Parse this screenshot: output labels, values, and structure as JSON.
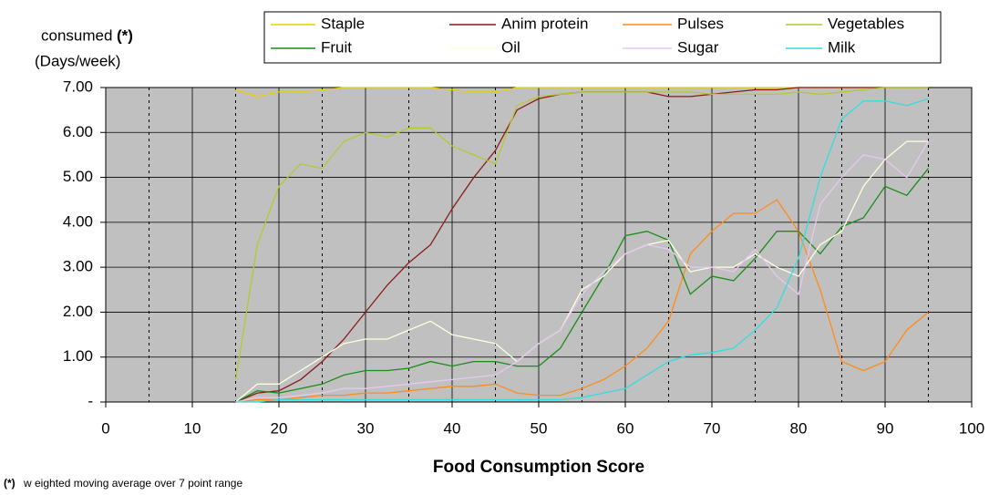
{
  "chart_data": {
    "type": "line",
    "y_label": "consumed",
    "y_label_note": "(*)",
    "y_label_unit": "(Days/week)",
    "x_label": "Food Consumption Score",
    "footnote_mark": "(*)",
    "footnote": "w eighted moving average over 7 point range",
    "x": [
      15,
      17.5,
      20,
      22.5,
      25,
      27.5,
      30,
      32.5,
      35,
      37.5,
      40,
      42.5,
      45,
      47.5,
      50,
      52.5,
      55,
      57.5,
      60,
      62.5,
      65,
      67.5,
      70,
      72.5,
      75,
      77.5,
      80,
      82.5,
      85,
      87.5,
      90,
      92.5,
      95
    ],
    "series": [
      {
        "name": "Staple",
        "color": "#e6d000",
        "values": [
          6.95,
          6.8,
          6.9,
          6.9,
          6.95,
          7,
          7,
          7,
          7,
          7,
          6.95,
          6.9,
          6.9,
          7,
          7,
          7,
          7,
          7,
          7,
          7,
          7,
          7,
          7,
          7,
          7,
          7,
          7,
          7,
          7,
          7,
          7,
          7,
          7
        ]
      },
      {
        "name": "Anim protein",
        "color": "#8b1a1a",
        "values": [
          0,
          0.2,
          0.25,
          0.5,
          0.9,
          1.4,
          2.0,
          2.6,
          3.1,
          3.5,
          4.3,
          5.0,
          5.6,
          6.5,
          6.75,
          6.85,
          6.9,
          6.9,
          6.9,
          6.9,
          6.8,
          6.8,
          6.85,
          6.9,
          6.95,
          6.95,
          7,
          7,
          7,
          7,
          7,
          7,
          7
        ]
      },
      {
        "name": "Pulses",
        "color": "#ff8c1a",
        "values": [
          0,
          0.05,
          0.05,
          0.1,
          0.15,
          0.15,
          0.2,
          0.2,
          0.25,
          0.3,
          0.35,
          0.35,
          0.4,
          0.2,
          0.15,
          0.15,
          0.3,
          0.5,
          0.8,
          1.2,
          1.8,
          3.3,
          3.8,
          4.2,
          4.2,
          4.5,
          3.8,
          2.5,
          0.9,
          0.7,
          0.9,
          1.6,
          2.0
        ]
      },
      {
        "name": "Vegetables",
        "color": "#b4c832",
        "values": [
          0.5,
          3.5,
          4.8,
          5.3,
          5.2,
          5.8,
          6.0,
          5.9,
          6.1,
          6.1,
          5.7,
          5.5,
          5.3,
          6.6,
          6.8,
          6.85,
          6.9,
          6.9,
          6.9,
          6.9,
          6.9,
          6.9,
          6.85,
          6.85,
          6.85,
          6.85,
          6.9,
          6.85,
          6.9,
          6.95,
          7,
          7,
          7
        ]
      },
      {
        "name": "Fruit",
        "color": "#1a8c1a",
        "values": [
          0,
          0.25,
          0.2,
          0.3,
          0.4,
          0.6,
          0.7,
          0.7,
          0.75,
          0.9,
          0.8,
          0.9,
          0.9,
          0.8,
          0.8,
          1.2,
          2.0,
          2.8,
          3.7,
          3.8,
          3.6,
          2.4,
          2.8,
          2.7,
          3.2,
          3.8,
          3.8,
          3.3,
          3.9,
          4.1,
          4.8,
          4.6,
          5.2
        ]
      },
      {
        "name": "Oil",
        "color": "#ffffe0",
        "values": [
          0,
          0.4,
          0.4,
          0.7,
          1.0,
          1.3,
          1.4,
          1.4,
          1.6,
          1.8,
          1.5,
          1.4,
          1.3,
          0.9,
          1.3,
          1.6,
          2.5,
          2.8,
          3.3,
          3.5,
          3.6,
          2.9,
          3.0,
          3.0,
          3.3,
          3.0,
          2.8,
          3.5,
          3.8,
          4.8,
          5.4,
          5.8,
          5.8
        ]
      },
      {
        "name": "Sugar",
        "color": "#e6c8f0",
        "values": [
          0,
          0.1,
          0.1,
          0.15,
          0.2,
          0.3,
          0.3,
          0.35,
          0.4,
          0.45,
          0.5,
          0.55,
          0.6,
          0.9,
          1.3,
          1.6,
          2.4,
          2.9,
          3.3,
          3.5,
          3.4,
          3.0,
          3.0,
          2.9,
          3.4,
          2.8,
          2.4,
          4.4,
          5.0,
          5.5,
          5.4,
          5.0,
          5.8
        ]
      },
      {
        "name": "Milk",
        "color": "#33dddd",
        "values": [
          0,
          0,
          0.05,
          0.05,
          0.05,
          0.05,
          0.05,
          0.05,
          0.05,
          0.05,
          0.05,
          0.05,
          0.05,
          0.05,
          0.05,
          0.05,
          0.1,
          0.2,
          0.3,
          0.6,
          0.9,
          1.05,
          1.1,
          1.2,
          1.6,
          2.1,
          3.2,
          5.0,
          6.3,
          6.7,
          6.7,
          6.6,
          6.75
        ]
      }
    ],
    "xlim": [
      0,
      100
    ],
    "xticks": [
      0,
      10,
      20,
      30,
      40,
      50,
      60,
      70,
      80,
      90,
      100
    ],
    "xminor_ticks": [
      5,
      15,
      25,
      35,
      45,
      55,
      65,
      75,
      85,
      95
    ],
    "ylim": [
      0,
      7
    ],
    "yticks": [
      {
        "value": 0,
        "label": "-"
      },
      {
        "value": 1,
        "label": "1.00"
      },
      {
        "value": 2,
        "label": "2.00"
      },
      {
        "value": 3,
        "label": "3.00"
      },
      {
        "value": 4,
        "label": "4.00"
      },
      {
        "value": 5,
        "label": "5.00"
      },
      {
        "value": 6,
        "label": "6.00"
      },
      {
        "value": 7,
        "label": "7.00"
      }
    ],
    "grid": true,
    "plot_background": "#c0c0c0",
    "legend_position": "top"
  }
}
